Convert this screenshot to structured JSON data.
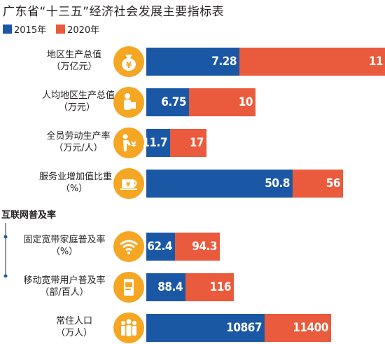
{
  "title": "广东省“十三五”经济社会发展主要指标表",
  "legend": [
    {
      "label": "2015年",
      "color": "#1a58a6"
    },
    {
      "label": "2020年",
      "color": "#ea5a3c"
    }
  ],
  "section_label": "互联网普及率",
  "chart_data": {
    "type": "bar",
    "orientation": "horizontal",
    "stacked": true,
    "categories": [
      "地区生产总值（万亿元）",
      "人均地区生产总值（万元）",
      "全员劳动生产率（万元/人）",
      "服务业增加值比重（%）",
      "固定宽带家庭普及率（%）",
      "移动宽带用户普及率（部/百人）",
      "常住人口（万人）"
    ],
    "series": [
      {
        "name": "2015年",
        "values": [
          7.28,
          6.75,
          11.7,
          50.8,
          62.4,
          88.4,
          10867
        ]
      },
      {
        "name": "2020年",
        "values": [
          11,
          10,
          17,
          56,
          94.3,
          116,
          11400
        ]
      }
    ],
    "title": "广东省“十三五”经济社会发展主要指标表",
    "legend_position": "top-left",
    "grid": false
  },
  "rows": [
    {
      "name": "地区生产总值",
      "unit": "（万亿元）",
      "icon": "money-bag-icon",
      "v2015": "7.28",
      "v2020": "11"
    },
    {
      "name": "人均地区生产总值",
      "unit": "（万元）",
      "icon": "person-money-icon",
      "v2015": "6.75",
      "v2020": "10"
    },
    {
      "name": "全员劳动生产率",
      "unit": "（万元/人）",
      "icon": "worker-icon",
      "v2015": "11.7",
      "v2020": "17"
    },
    {
      "name": "服务业增加值比重",
      "unit": "（%）",
      "icon": "service-money-icon",
      "v2015": "50.8",
      "v2020": "56"
    },
    {
      "name": "固定宽带家庭普及率",
      "unit": "（%）",
      "icon": "wifi-icon",
      "v2015": "62.4",
      "v2020": "94.3"
    },
    {
      "name": "移动宽带用户普及率",
      "unit": "（部/百人）",
      "icon": "mobile-chat-icon",
      "v2015": "88.4",
      "v2020": "116"
    },
    {
      "name": "常住人口",
      "unit": "（万人）",
      "icon": "population-icon",
      "v2015": "10867",
      "v2020": "11400"
    }
  ]
}
